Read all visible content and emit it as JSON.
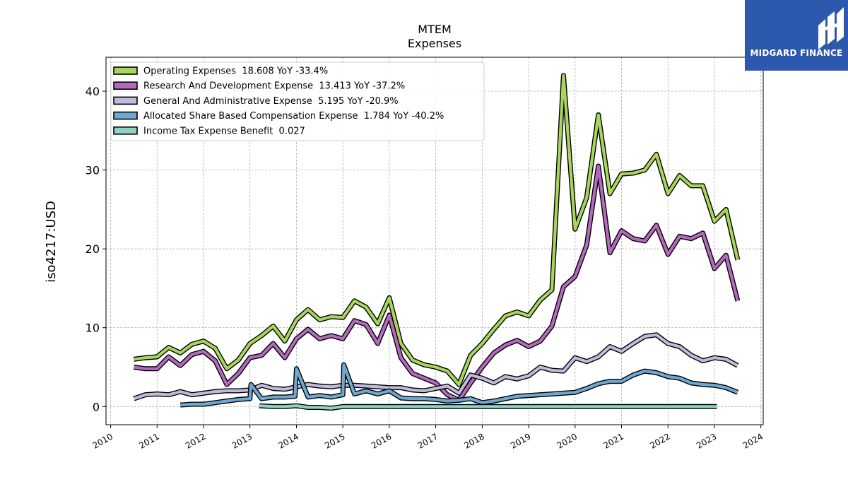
{
  "chart_data": {
    "type": "line",
    "title": "MTEM",
    "subtitle": "Expenses",
    "ylabel": "iso4217:USD",
    "xlim": [
      2009.9,
      2024.05
    ],
    "ylim": [
      -2.3,
      44.3
    ],
    "x_ticks": [
      2010,
      2011,
      2012,
      2013,
      2014,
      2015,
      2016,
      2017,
      2018,
      2019,
      2020,
      2021,
      2022,
      2023,
      2024
    ],
    "y_ticks": [
      0,
      10,
      20,
      30,
      40
    ],
    "grid": true,
    "legend_position": "upper-left",
    "series": [
      {
        "name": "Operating Expenses",
        "legend": "Operating Expenses  18.608 YoY -33.4%",
        "color": "#a8d65c",
        "points": [
          [
            2010.5,
            6.0
          ],
          [
            2010.75,
            6.2
          ],
          [
            2011.0,
            6.3
          ],
          [
            2011.25,
            7.5
          ],
          [
            2011.5,
            6.8
          ],
          [
            2011.75,
            7.9
          ],
          [
            2012.0,
            8.3
          ],
          [
            2012.25,
            7.4
          ],
          [
            2012.5,
            4.8
          ],
          [
            2012.75,
            5.9
          ],
          [
            2013.0,
            8.0
          ],
          [
            2013.25,
            9.0
          ],
          [
            2013.5,
            10.2
          ],
          [
            2013.75,
            8.3
          ],
          [
            2014.0,
            11.0
          ],
          [
            2014.25,
            12.3
          ],
          [
            2014.5,
            11.0
          ],
          [
            2014.75,
            11.4
          ],
          [
            2015.0,
            11.3
          ],
          [
            2015.25,
            13.4
          ],
          [
            2015.5,
            12.6
          ],
          [
            2015.75,
            10.5
          ],
          [
            2016.0,
            13.8
          ],
          [
            2016.25,
            8.0
          ],
          [
            2016.5,
            5.9
          ],
          [
            2016.75,
            5.3
          ],
          [
            2017.0,
            5.0
          ],
          [
            2017.25,
            4.5
          ],
          [
            2017.5,
            2.8
          ],
          [
            2017.75,
            6.5
          ],
          [
            2018.0,
            8.0
          ],
          [
            2018.25,
            9.8
          ],
          [
            2018.5,
            11.5
          ],
          [
            2018.75,
            12.0
          ],
          [
            2019.0,
            11.5
          ],
          [
            2019.25,
            13.5
          ],
          [
            2019.5,
            14.8
          ],
          [
            2019.75,
            42.0
          ],
          [
            2020.0,
            22.5
          ],
          [
            2020.25,
            26.5
          ],
          [
            2020.5,
            37.0
          ],
          [
            2020.75,
            27.0
          ],
          [
            2021.0,
            29.5
          ],
          [
            2021.25,
            29.6
          ],
          [
            2021.5,
            30.0
          ],
          [
            2021.75,
            32.0
          ],
          [
            2022.0,
            27.0
          ],
          [
            2022.25,
            29.3
          ],
          [
            2022.5,
            28.0
          ],
          [
            2022.75,
            28.0
          ],
          [
            2023.0,
            23.5
          ],
          [
            2023.25,
            25.0
          ],
          [
            2023.5,
            18.6
          ]
        ]
      },
      {
        "name": "Research And Development Expense",
        "legend": "Research And Development Expense  13.413 YoY -37.2%",
        "color": "#b469bd",
        "points": [
          [
            2010.5,
            5.0
          ],
          [
            2010.75,
            4.8
          ],
          [
            2011.0,
            4.8
          ],
          [
            2011.25,
            6.3
          ],
          [
            2011.5,
            5.2
          ],
          [
            2011.75,
            6.6
          ],
          [
            2012.0,
            7.0
          ],
          [
            2012.25,
            5.8
          ],
          [
            2012.5,
            2.8
          ],
          [
            2012.75,
            4.2
          ],
          [
            2013.0,
            6.2
          ],
          [
            2013.25,
            6.5
          ],
          [
            2013.5,
            8.0
          ],
          [
            2013.75,
            6.2
          ],
          [
            2014.0,
            8.6
          ],
          [
            2014.25,
            9.8
          ],
          [
            2014.5,
            8.6
          ],
          [
            2014.75,
            9.0
          ],
          [
            2015.0,
            8.6
          ],
          [
            2015.25,
            10.9
          ],
          [
            2015.5,
            10.4
          ],
          [
            2015.75,
            8.0
          ],
          [
            2016.0,
            11.6
          ],
          [
            2016.25,
            6.2
          ],
          [
            2016.5,
            4.2
          ],
          [
            2016.75,
            3.6
          ],
          [
            2017.0,
            3.0
          ],
          [
            2017.25,
            1.5
          ],
          [
            2017.5,
            0.8
          ],
          [
            2017.75,
            3.0
          ],
          [
            2018.0,
            5.0
          ],
          [
            2018.25,
            6.8
          ],
          [
            2018.5,
            7.8
          ],
          [
            2018.75,
            8.4
          ],
          [
            2019.0,
            7.6
          ],
          [
            2019.25,
            8.3
          ],
          [
            2019.5,
            10.2
          ],
          [
            2019.75,
            15.2
          ],
          [
            2020.0,
            16.5
          ],
          [
            2020.25,
            20.5
          ],
          [
            2020.5,
            30.5
          ],
          [
            2020.75,
            19.5
          ],
          [
            2021.0,
            22.3
          ],
          [
            2021.25,
            21.3
          ],
          [
            2021.5,
            21.0
          ],
          [
            2021.75,
            23.0
          ],
          [
            2022.0,
            19.3
          ],
          [
            2022.25,
            21.6
          ],
          [
            2022.5,
            21.3
          ],
          [
            2022.75,
            22.0
          ],
          [
            2023.0,
            17.5
          ],
          [
            2023.25,
            19.2
          ],
          [
            2023.5,
            13.4
          ]
        ]
      },
      {
        "name": "General And Administrative Expense",
        "legend": "General And Administrative Expense  5.195 YoY -20.9%",
        "color": "#c0bbdc",
        "points": [
          [
            2010.5,
            1.0
          ],
          [
            2010.75,
            1.5
          ],
          [
            2011.0,
            1.6
          ],
          [
            2011.25,
            1.5
          ],
          [
            2011.5,
            1.9
          ],
          [
            2011.75,
            1.5
          ],
          [
            2012.0,
            1.7
          ],
          [
            2012.25,
            1.9
          ],
          [
            2012.5,
            2.0
          ],
          [
            2012.75,
            2.0
          ],
          [
            2013.0,
            2.1
          ],
          [
            2013.25,
            2.7
          ],
          [
            2013.5,
            2.3
          ],
          [
            2013.75,
            2.2
          ],
          [
            2014.0,
            2.5
          ],
          [
            2014.25,
            2.8
          ],
          [
            2014.5,
            2.6
          ],
          [
            2014.75,
            2.5
          ],
          [
            2015.0,
            2.7
          ],
          [
            2015.25,
            2.7
          ],
          [
            2015.5,
            2.6
          ],
          [
            2015.75,
            2.5
          ],
          [
            2016.0,
            2.4
          ],
          [
            2016.25,
            2.4
          ],
          [
            2016.5,
            2.1
          ],
          [
            2016.75,
            2.0
          ],
          [
            2017.0,
            2.3
          ],
          [
            2017.25,
            2.6
          ],
          [
            2017.5,
            1.7
          ],
          [
            2017.75,
            4.0
          ],
          [
            2018.0,
            3.6
          ],
          [
            2018.25,
            3.0
          ],
          [
            2018.5,
            3.8
          ],
          [
            2018.75,
            3.5
          ],
          [
            2019.0,
            3.9
          ],
          [
            2019.25,
            5.0
          ],
          [
            2019.5,
            4.6
          ],
          [
            2019.75,
            4.5
          ],
          [
            2020.0,
            6.2
          ],
          [
            2020.25,
            5.7
          ],
          [
            2020.5,
            6.3
          ],
          [
            2020.75,
            7.6
          ],
          [
            2021.0,
            7.0
          ],
          [
            2021.25,
            8.0
          ],
          [
            2021.5,
            8.9
          ],
          [
            2021.75,
            9.1
          ],
          [
            2022.0,
            8.0
          ],
          [
            2022.25,
            7.6
          ],
          [
            2022.5,
            6.5
          ],
          [
            2022.75,
            5.8
          ],
          [
            2023.0,
            6.2
          ],
          [
            2023.25,
            6.0
          ],
          [
            2023.5,
            5.2
          ]
        ]
      },
      {
        "name": "Allocated Share Based Compensation Expense",
        "legend": "Allocated Share Based Compensation Expense  1.784 YoY -40.2%",
        "color": "#6fa8d1",
        "points": [
          [
            2011.5,
            0.2
          ],
          [
            2011.75,
            0.3
          ],
          [
            2012.0,
            0.3
          ],
          [
            2012.25,
            0.5
          ],
          [
            2012.5,
            0.7
          ],
          [
            2012.75,
            0.9
          ],
          [
            2013.0,
            1.0
          ],
          [
            2013.02,
            2.8
          ],
          [
            2013.25,
            1.0
          ],
          [
            2013.5,
            1.2
          ],
          [
            2013.75,
            1.2
          ],
          [
            2013.97,
            1.3
          ],
          [
            2014.0,
            4.8
          ],
          [
            2014.25,
            1.2
          ],
          [
            2014.5,
            1.4
          ],
          [
            2014.75,
            1.2
          ],
          [
            2015.0,
            1.5
          ],
          [
            2015.02,
            5.3
          ],
          [
            2015.25,
            1.6
          ],
          [
            2015.5,
            2.0
          ],
          [
            2015.75,
            1.6
          ],
          [
            2016.0,
            2.0
          ],
          [
            2016.25,
            1.1
          ],
          [
            2016.5,
            1.0
          ],
          [
            2016.75,
            1.0
          ],
          [
            2017.0,
            0.9
          ],
          [
            2017.25,
            0.7
          ],
          [
            2017.5,
            0.8
          ],
          [
            2017.75,
            1.0
          ],
          [
            2018.0,
            0.5
          ],
          [
            2018.25,
            0.7
          ],
          [
            2018.5,
            1.0
          ],
          [
            2018.75,
            1.3
          ],
          [
            2019.0,
            1.4
          ],
          [
            2019.25,
            1.5
          ],
          [
            2019.5,
            1.6
          ],
          [
            2019.75,
            1.7
          ],
          [
            2020.0,
            1.8
          ],
          [
            2020.25,
            2.3
          ],
          [
            2020.5,
            2.9
          ],
          [
            2020.75,
            3.2
          ],
          [
            2021.0,
            3.2
          ],
          [
            2021.25,
            4.0
          ],
          [
            2021.5,
            4.5
          ],
          [
            2021.75,
            4.3
          ],
          [
            2022.0,
            3.8
          ],
          [
            2022.25,
            3.6
          ],
          [
            2022.5,
            3.0
          ],
          [
            2022.75,
            2.8
          ],
          [
            2023.0,
            2.7
          ],
          [
            2023.25,
            2.4
          ],
          [
            2023.5,
            1.8
          ]
        ]
      },
      {
        "name": "Income Tax Expense Benefit",
        "legend": "Income Tax Expense Benefit  0.027",
        "color": "#8ed3c7",
        "points": [
          [
            2013.2,
            0.1
          ],
          [
            2013.5,
            0.0
          ],
          [
            2013.75,
            0.0
          ],
          [
            2014.0,
            0.1
          ],
          [
            2014.25,
            -0.1
          ],
          [
            2014.5,
            -0.1
          ],
          [
            2014.75,
            -0.2
          ],
          [
            2015.0,
            0.0
          ],
          [
            2015.5,
            0.0
          ],
          [
            2016.0,
            0.0
          ],
          [
            2017.0,
            0.0
          ],
          [
            2018.0,
            0.0
          ],
          [
            2019.0,
            0.0
          ],
          [
            2020.0,
            0.0
          ],
          [
            2021.0,
            0.0
          ],
          [
            2022.0,
            0.0
          ],
          [
            2023.0,
            0.0
          ],
          [
            2023.05,
            0.0
          ]
        ]
      }
    ]
  },
  "logo": {
    "text": "MIDGARD FINANCE",
    "color": "#2c58ad"
  }
}
